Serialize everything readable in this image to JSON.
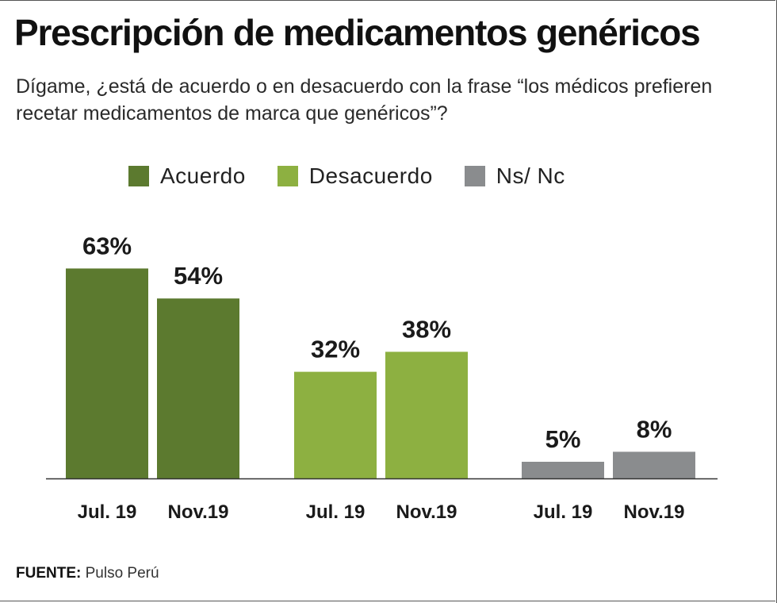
{
  "title": "Prescripción de medicamentos genéricos",
  "subtitle": "Dígame, ¿está de acuerdo o en desacuerdo con la frase “los médicos prefieren recetar medicamentos de marca que genéricos”?",
  "source": {
    "label": "FUENTE:",
    "value": "Pulso Perú"
  },
  "chart_data": {
    "type": "bar",
    "legend_position": "top",
    "grid": false,
    "ylim": [
      0,
      70
    ],
    "groups": [
      {
        "name": "Acuerdo",
        "color": "#5c7a2f",
        "bars": [
          {
            "x": "Jul. 19",
            "value": 63,
            "label": "63%"
          },
          {
            "x": "Nov.19",
            "value": 54,
            "label": "54%"
          }
        ]
      },
      {
        "name": "Desacuerdo",
        "color": "#8db041",
        "bars": [
          {
            "x": "Jul. 19",
            "value": 32,
            "label": "32%"
          },
          {
            "x": "Nov.19",
            "value": 38,
            "label": "38%"
          }
        ]
      },
      {
        "name": "Ns/ Nc",
        "color": "#8a8c8e",
        "bars": [
          {
            "x": "Jul. 19",
            "value": 5,
            "label": "5%"
          },
          {
            "x": "Nov.19",
            "value": 8,
            "label": "8%"
          }
        ]
      }
    ]
  }
}
